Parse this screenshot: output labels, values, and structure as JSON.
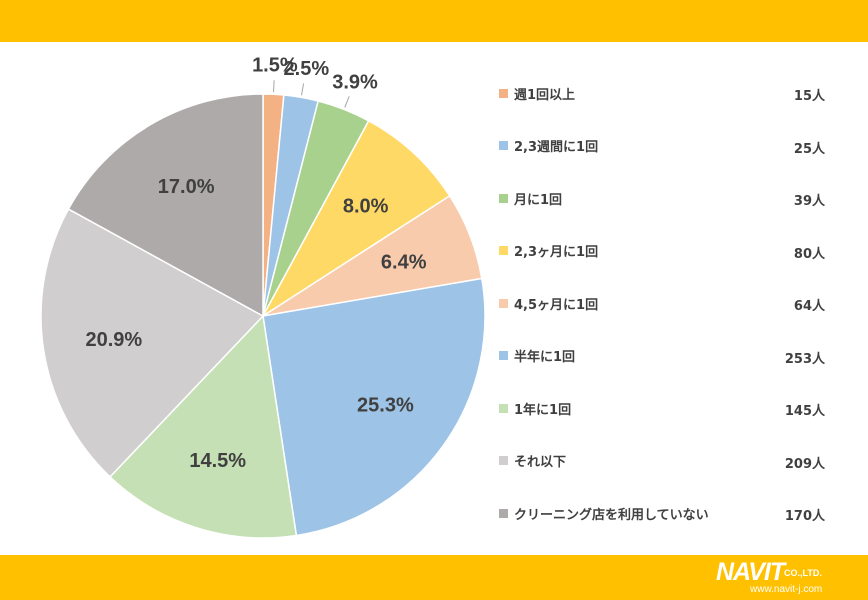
{
  "chart_data": {
    "type": "pie",
    "slices": [
      {
        "label": "週1回以上",
        "count": "15人",
        "value": 1.5,
        "pct_label": "1.5%",
        "color": "#F4B183"
      },
      {
        "label": "2,3週間に1回",
        "count": "25人",
        "value": 2.5,
        "pct_label": "2.5%",
        "color": "#9DC3E6"
      },
      {
        "label": "月に1回",
        "count": "39人",
        "value": 3.9,
        "pct_label": "3.9%",
        "color": "#A9D18E"
      },
      {
        "label": "2,3ヶ月に1回",
        "count": "80人",
        "value": 8.0,
        "pct_label": "8.0%",
        "color": "#FFD966"
      },
      {
        "label": "4,5ヶ月に1回",
        "count": "64人",
        "value": 6.4,
        "pct_label": "6.4%",
        "color": "#F8CBAD"
      },
      {
        "label": "半年に1回",
        "count": "253人",
        "value": 25.3,
        "pct_label": "25.3%",
        "color": "#9DC3E6"
      },
      {
        "label": "1年に1回",
        "count": "145人",
        "value": 14.5,
        "pct_label": "14.5%",
        "color": "#C5E0B4"
      },
      {
        "label": "それ以下",
        "count": "209人",
        "value": 20.9,
        "pct_label": "20.9%",
        "color": "#D0CECE"
      },
      {
        "label": "クリーニング店を利用していない",
        "count": "170人",
        "value": 17.0,
        "pct_label": "17.0%",
        "color": "#AEAAAA"
      }
    ],
    "legend_position": "right",
    "start_angle": "12 o'clock, clockwise"
  },
  "branding": {
    "logo_text": "NAVIT",
    "company_suffix": "CO.,LTD.",
    "url": "www.navit-j.com"
  },
  "colors": {
    "band": "#FFC000",
    "label_text": "#404040"
  }
}
